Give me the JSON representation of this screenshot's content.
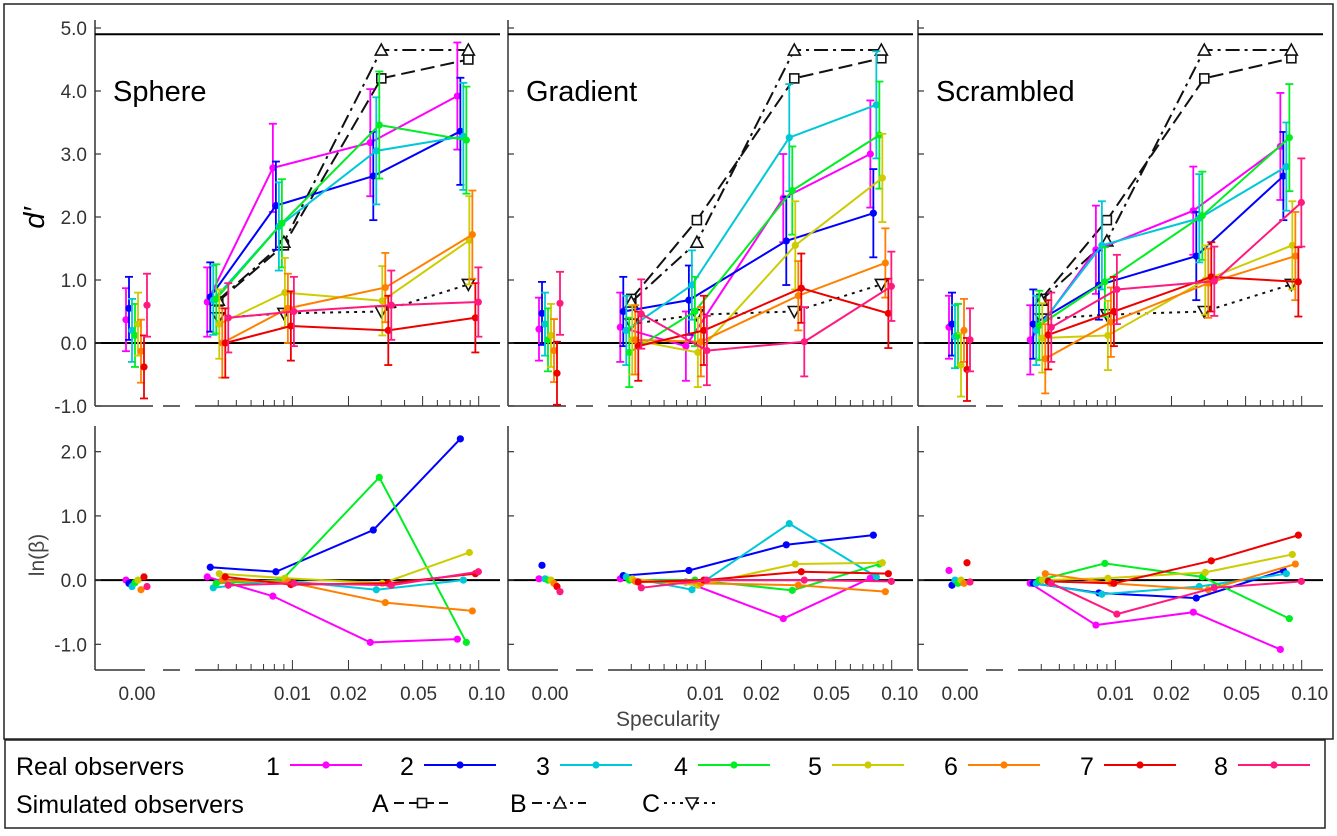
{
  "chart_data": {
    "type": "line",
    "xlabel": "Specularity",
    "ylabel_top": "d′",
    "ylabel_bottom": "ln(β)",
    "top_ylim": [
      -1,
      5
    ],
    "top_yticks": [
      "-1.0",
      "0.0",
      "1.0",
      "2.0",
      "3.0",
      "4.0",
      "5.0"
    ],
    "bottom_ylim": [
      -1.4,
      2.4
    ],
    "bottom_yticks": [
      "-1.0",
      "0.0",
      "1.0",
      "2.0"
    ],
    "x_tick_labels": [
      "0.00",
      "0.01",
      "0.02",
      "0.05",
      "0.10"
    ],
    "x_tick_values": [
      0,
      0.01,
      0.02,
      0.05,
      0.1
    ],
    "x_levels": [
      0,
      0.004,
      0.009,
      0.03,
      0.088
    ],
    "panels": [
      {
        "title": "Sphere",
        "dprime": {
          "1": [
            0.37,
            0.65,
            2.78,
            3.18,
            3.92
          ],
          "2": [
            0.55,
            0.73,
            2.18,
            2.65,
            3.36
          ],
          "3": [
            0.2,
            0.68,
            1.85,
            3.05,
            3.28
          ],
          "4": [
            0.12,
            0.7,
            1.9,
            3.46,
            3.22
          ],
          "5": [
            0.3,
            0.3,
            0.8,
            0.67,
            1.63
          ],
          "6": [
            -0.13,
            0.0,
            0.55,
            0.88,
            1.72
          ],
          "7": [
            -0.38,
            0.0,
            0.27,
            0.2,
            0.4
          ],
          "8": [
            0.6,
            0.4,
            0.5,
            0.6,
            0.65
          ],
          "A": [
            null,
            0.66,
            1.55,
            4.2,
            4.5
          ],
          "B": [
            null,
            0.68,
            1.6,
            4.65,
            4.65
          ],
          "C": [
            null,
            0.4,
            0.47,
            0.5,
            0.93
          ]
        },
        "lnbeta": {
          "1": [
            0.0,
            0.05,
            -0.25,
            -0.97,
            -0.92
          ],
          "2": [
            -0.05,
            0.2,
            0.13,
            0.78,
            2.2
          ],
          "3": [
            -0.1,
            -0.12,
            0.0,
            -0.15,
            0.0
          ],
          "4": [
            -0.04,
            -0.05,
            0.0,
            1.6,
            -0.97
          ],
          "5": [
            0.0,
            0.1,
            0.03,
            -0.05,
            0.43
          ],
          "6": [
            -0.15,
            0.0,
            -0.03,
            -0.35,
            -0.48
          ],
          "7": [
            0.05,
            0.05,
            -0.07,
            -0.05,
            0.1
          ],
          "8": [
            -0.1,
            -0.08,
            -0.05,
            -0.08,
            0.13
          ]
        }
      },
      {
        "title": "Gradient",
        "dprime": {
          "1": [
            0.22,
            0.25,
            -0.05,
            2.3,
            3.0
          ],
          "2": [
            0.47,
            0.5,
            0.68,
            1.62,
            2.06
          ],
          "3": [
            0.3,
            0.2,
            0.92,
            3.26,
            3.78
          ],
          "4": [
            0.05,
            -0.15,
            0.5,
            2.42,
            3.3
          ],
          "5": [
            0.12,
            0.05,
            -0.15,
            1.55,
            2.62
          ],
          "6": [
            -0.12,
            0.05,
            0.02,
            0.75,
            1.27
          ],
          "7": [
            -0.48,
            -0.05,
            0.2,
            0.87,
            0.47
          ],
          "8": [
            0.63,
            0.46,
            -0.12,
            0.02,
            0.9
          ],
          "A": [
            null,
            0.7,
            1.95,
            4.2,
            4.52
          ],
          "B": [
            null,
            0.65,
            1.6,
            4.65,
            4.65
          ],
          "C": [
            null,
            0.3,
            0.45,
            0.5,
            0.93
          ]
        },
        "lnbeta": {
          "1": [
            0.02,
            0.02,
            -0.03,
            -0.6,
            0.03
          ],
          "2": [
            0.23,
            0.07,
            0.15,
            0.55,
            0.7
          ],
          "3": [
            0.02,
            0.05,
            -0.15,
            0.88,
            0.05
          ],
          "4": [
            0.0,
            0.0,
            0.0,
            -0.16,
            0.25
          ],
          "5": [
            0.0,
            0.02,
            -0.08,
            0.25,
            0.27
          ],
          "6": [
            -0.05,
            -0.02,
            -0.05,
            -0.08,
            -0.18
          ],
          "7": [
            -0.1,
            -0.03,
            0.0,
            0.13,
            0.1
          ],
          "8": [
            -0.18,
            -0.12,
            0.0,
            0.0,
            -0.02
          ]
        }
      },
      {
        "title": "Scrambled",
        "dprime": {
          "1": [
            0.25,
            0.05,
            1.48,
            2.1,
            3.12
          ],
          "2": [
            0.3,
            0.3,
            0.92,
            1.38,
            2.65
          ],
          "3": [
            0.1,
            0.2,
            1.55,
            1.98,
            2.8
          ],
          "4": [
            0.12,
            0.28,
            0.97,
            2.02,
            3.26
          ],
          "5": [
            -0.35,
            0.08,
            0.12,
            1.0,
            1.55
          ],
          "6": [
            0.2,
            -0.25,
            0.33,
            0.95,
            1.38
          ],
          "7": [
            -0.42,
            0.13,
            0.5,
            1.05,
            0.97
          ],
          "8": [
            0.05,
            0.25,
            0.85,
            0.98,
            2.23
          ],
          "A": [
            null,
            0.7,
            1.95,
            4.2,
            4.52
          ],
          "B": [
            null,
            0.68,
            1.62,
            4.65,
            4.65
          ],
          "C": [
            null,
            0.38,
            0.45,
            0.5,
            0.93
          ]
        },
        "lnbeta": {
          "1": [
            0.15,
            -0.05,
            -0.7,
            -0.5,
            -1.08
          ],
          "2": [
            -0.08,
            -0.05,
            -0.2,
            -0.28,
            0.15
          ],
          "3": [
            0.0,
            -0.05,
            -0.22,
            -0.1,
            0.1
          ],
          "4": [
            -0.05,
            0.0,
            0.26,
            0.05,
            -0.6
          ],
          "5": [
            0.0,
            0.0,
            0.03,
            0.12,
            0.4
          ],
          "6": [
            -0.05,
            0.1,
            -0.05,
            -0.15,
            0.25
          ],
          "7": [
            0.27,
            -0.02,
            -0.05,
            0.3,
            0.7
          ],
          "8": [
            -0.03,
            -0.05,
            -0.53,
            -0.12,
            -0.02
          ]
        }
      }
    ],
    "legend": {
      "real_label": "Real observers",
      "sim_label": "Simulated observers",
      "real": [
        {
          "label": "1",
          "color": "#ff00ff"
        },
        {
          "label": "2",
          "color": "#0000ff"
        },
        {
          "label": "3",
          "color": "#00c8d8"
        },
        {
          "label": "4",
          "color": "#00ee22"
        },
        {
          "label": "5",
          "color": "#cccc00"
        },
        {
          "label": "6",
          "color": "#ff8000"
        },
        {
          "label": "7",
          "color": "#ee0000"
        },
        {
          "label": "8",
          "color": "#ff1a80"
        }
      ],
      "sim": [
        {
          "label": "A",
          "marker": "square",
          "dash": "dashed"
        },
        {
          "label": "B",
          "marker": "triangle-up",
          "dash": "dash-dot"
        },
        {
          "label": "C",
          "marker": "triangle-down",
          "dash": "dotted"
        }
      ]
    }
  }
}
